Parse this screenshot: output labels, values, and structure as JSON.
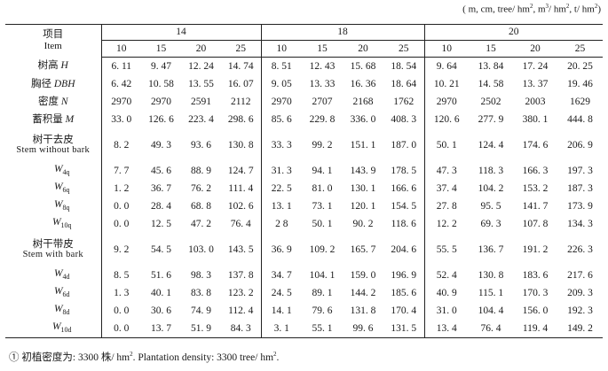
{
  "units_prefix": "( m, cm, tree",
  "units_mid1": "hm",
  "units_mid2": ", m",
  "units_mid3": "hm",
  "units_mid4": ", t",
  "units_mid5": "hm",
  "units_suffix": ")",
  "header": {
    "item_cn": "项目",
    "item_en": "Item",
    "groups": [
      "14",
      "18",
      "20"
    ],
    "ages": [
      "10",
      "15",
      "20",
      "25",
      "10",
      "15",
      "20",
      "25",
      "10",
      "15",
      "20",
      "25"
    ]
  },
  "rows": [
    {
      "cn": "树高",
      "sym": "H",
      "values": [
        "6. 11",
        "9. 47",
        "12. 24",
        "14. 74",
        "8. 51",
        "12. 43",
        "15. 68",
        "18. 54",
        "9. 64",
        "13. 84",
        "17. 24",
        "20. 25"
      ]
    },
    {
      "cn": "胸径",
      "sym": "DBH",
      "values": [
        "6. 42",
        "10. 58",
        "13. 55",
        "16. 07",
        "9. 05",
        "13. 33",
        "16. 36",
        "18. 64",
        "10. 21",
        "14. 58",
        "13. 37",
        "19. 46"
      ]
    },
    {
      "cn": "密度",
      "sym": "N",
      "values": [
        "2970",
        "2970",
        "2591",
        "2112",
        "2970",
        "2707",
        "2168",
        "1762",
        "2970",
        "2502",
        "2003",
        "1629"
      ]
    },
    {
      "cn": "蓄积量",
      "sym": "M",
      "values": [
        "33. 0",
        "126. 6",
        "223. 4",
        "298. 6",
        "85. 6",
        "229. 8",
        "336. 0",
        "408. 3",
        "120. 6",
        "277. 9",
        "380. 1",
        "444. 8"
      ]
    },
    {
      "cn": "树干去皮",
      "en": "Stem without bark",
      "values": [
        "8. 2",
        "49. 3",
        "93. 6",
        "130. 8",
        "33. 3",
        "99. 2",
        "151. 1",
        "187. 0",
        "50. 1",
        "124. 4",
        "174. 6",
        "206. 9"
      ]
    },
    {
      "w": "W",
      "wsub": "4q",
      "values": [
        "7. 7",
        "45. 6",
        "88. 9",
        "124. 7",
        "31. 3",
        "94. 1",
        "143. 9",
        "178. 5",
        "47. 3",
        "118. 3",
        "166. 3",
        "197. 3"
      ]
    },
    {
      "w": "W",
      "wsub": "6q",
      "values": [
        "1. 2",
        "36. 7",
        "76. 2",
        "111. 4",
        "22. 5",
        "81. 0",
        "130. 1",
        "166. 6",
        "37. 4",
        "104. 2",
        "153. 2",
        "187. 3"
      ]
    },
    {
      "w": "W",
      "wsub": "8q",
      "values": [
        "0. 0",
        "28. 4",
        "68. 8",
        "102. 6",
        "13. 1",
        "73. 1",
        "120. 1",
        "154. 5",
        "27. 8",
        "95. 5",
        "141. 7",
        "173. 9"
      ]
    },
    {
      "w": "W",
      "wsub": "10q",
      "values": [
        "0. 0",
        "12. 5",
        "47. 2",
        "76. 4",
        "2 8",
        "50. 1",
        "90. 2",
        "118. 6",
        "12. 2",
        "69. 3",
        "107. 8",
        "134. 3"
      ]
    },
    {
      "cn": "树干带皮",
      "en": "Stem with bark",
      "values": [
        "9. 2",
        "54. 5",
        "103. 0",
        "143. 5",
        "36. 9",
        "109. 2",
        "165. 7",
        "204. 6",
        "55. 5",
        "136. 7",
        "191. 2",
        "226. 3"
      ]
    },
    {
      "w": "W",
      "wsub": "4d",
      "values": [
        "8. 5",
        "51. 6",
        "98. 3",
        "137. 8",
        "34. 7",
        "104. 1",
        "159. 0",
        "196. 9",
        "52. 4",
        "130. 8",
        "183. 6",
        "217. 6"
      ]
    },
    {
      "w": "W",
      "wsub": "6d",
      "values": [
        "1. 3",
        "40. 1",
        "83. 8",
        "123. 2",
        "24. 5",
        "89. 1",
        "144. 2",
        "185. 6",
        "40. 9",
        "115. 1",
        "170. 3",
        "209. 3"
      ]
    },
    {
      "w": "W",
      "wsub": "8d",
      "values": [
        "0. 0",
        "30. 6",
        "74. 9",
        "112. 4",
        "14. 1",
        "79. 6",
        "131. 8",
        "170. 4",
        "31. 0",
        "104. 4",
        "156. 0",
        "192. 3"
      ]
    },
    {
      "w": "W",
      "wsub": "10d",
      "values": [
        "0. 0",
        "13. 7",
        "51. 9",
        "84. 3",
        "3. 1",
        "55. 1",
        "99. 6",
        "131. 5",
        "13. 4",
        "76. 4",
        "119. 4",
        "149. 2"
      ]
    }
  ],
  "footnote_cn": "① 初植密度为: 3300 株/ hm",
  "footnote_en": ". Plantation density: 3300 tree/ hm",
  "footnote_end": "."
}
